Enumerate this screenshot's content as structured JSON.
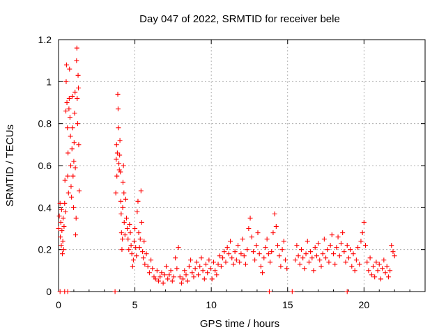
{
  "chart_data": {
    "type": "scatter",
    "title": "Day 047 of 2022, SRMTID for receiver bele",
    "xlabel": "GPS time / hours",
    "ylabel": "SRMTID / TECUs",
    "xlim": [
      0,
      24
    ],
    "ylim": [
      0,
      1.2
    ],
    "xticks": [
      0,
      5,
      10,
      15,
      20
    ],
    "yticks": [
      0,
      0.2,
      0.4,
      0.6,
      0.8,
      1,
      1.2
    ],
    "xtick_labels": [
      "0",
      "5",
      "10",
      "15",
      "20"
    ],
    "ytick_labels": [
      "0",
      "0.2",
      "0.4",
      "0.6",
      "0.8",
      "1",
      "1.2"
    ],
    "grid": true,
    "marker": "+",
    "color": "#ff0000",
    "series": [
      {
        "name": "SRMTID",
        "points": [
          [
            0.0,
            0.3
          ],
          [
            0.05,
            0.36
          ],
          [
            0.1,
            0.42
          ],
          [
            0.12,
            0.26
          ],
          [
            0.15,
            0.33
          ],
          [
            0.18,
            0.22
          ],
          [
            0.2,
            0.39
          ],
          [
            0.22,
            0.29
          ],
          [
            0.25,
            0.18
          ],
          [
            0.28,
            0.24
          ],
          [
            0.3,
            0.35
          ],
          [
            0.33,
            0.2
          ],
          [
            0.36,
            0.31
          ],
          [
            0.4,
            0.42
          ],
          [
            0.42,
            0.53
          ],
          [
            0.45,
            0.38
          ],
          [
            0.48,
            0.86
          ],
          [
            0.5,
            1.0
          ],
          [
            0.52,
            1.08
          ],
          [
            0.55,
            0.9
          ],
          [
            0.58,
            0.78
          ],
          [
            0.6,
            0.55
          ],
          [
            0.62,
            0.66
          ],
          [
            0.65,
            0.47
          ],
          [
            0.68,
            0.87
          ],
          [
            0.7,
            0.92
          ],
          [
            0.72,
            1.06
          ],
          [
            0.75,
            0.83
          ],
          [
            0.78,
            0.74
          ],
          [
            0.8,
            0.6
          ],
          [
            0.82,
            0.5
          ],
          [
            0.85,
            0.45
          ],
          [
            0.88,
            0.68
          ],
          [
            0.9,
            0.93
          ],
          [
            0.92,
            0.78
          ],
          [
            0.95,
            0.55
          ],
          [
            0.98,
            0.4
          ],
          [
            1.0,
            0.62
          ],
          [
            1.02,
            0.71
          ],
          [
            1.05,
            0.85
          ],
          [
            1.08,
            0.95
          ],
          [
            1.1,
            0.59
          ],
          [
            1.12,
            0.27
          ],
          [
            1.15,
            0.35
          ],
          [
            1.18,
            1.1
          ],
          [
            1.2,
            1.16
          ],
          [
            1.22,
            0.92
          ],
          [
            1.25,
            0.8
          ],
          [
            1.28,
            1.03
          ],
          [
            1.3,
            0.97
          ],
          [
            1.32,
            0.7
          ],
          [
            1.35,
            0.48
          ],
          [
            3.75,
            0.47
          ],
          [
            3.78,
            0.63
          ],
          [
            3.8,
            0.7
          ],
          [
            3.82,
            0.55
          ],
          [
            3.85,
            0.66
          ],
          [
            3.88,
            0.94
          ],
          [
            3.9,
            0.87
          ],
          [
            3.92,
            0.78
          ],
          [
            3.95,
            0.61
          ],
          [
            3.98,
            0.58
          ],
          [
            4.0,
            0.65
          ],
          [
            4.02,
            0.72
          ],
          [
            4.05,
            0.57
          ],
          [
            4.08,
            0.43
          ],
          [
            4.1,
            0.37
          ],
          [
            4.12,
            0.28
          ],
          [
            4.15,
            0.2
          ],
          [
            4.18,
            0.25
          ],
          [
            4.2,
            0.4
          ],
          [
            4.22,
            0.52
          ],
          [
            4.25,
            0.6
          ],
          [
            4.28,
            0.47
          ],
          [
            4.3,
            0.33
          ],
          [
            4.35,
            0.27
          ],
          [
            4.4,
            0.44
          ],
          [
            4.45,
            0.35
          ],
          [
            4.5,
            0.3
          ],
          [
            4.55,
            0.25
          ],
          [
            4.6,
            0.2
          ],
          [
            4.65,
            0.32
          ],
          [
            4.7,
            0.28
          ],
          [
            4.75,
            0.22
          ],
          [
            4.8,
            0.18
          ],
          [
            4.85,
            0.12
          ],
          [
            4.9,
            0.15
          ],
          [
            4.95,
            0.24
          ],
          [
            5.0,
            0.3
          ],
          [
            5.05,
            0.21
          ],
          [
            5.1,
            0.17
          ],
          [
            5.15,
            0.38
          ],
          [
            5.2,
            0.43
          ],
          [
            5.25,
            0.28
          ],
          [
            5.3,
            0.21
          ],
          [
            5.35,
            0.25
          ],
          [
            5.4,
            0.48
          ],
          [
            5.45,
            0.33
          ],
          [
            5.5,
            0.19
          ],
          [
            5.55,
            0.16
          ],
          [
            5.6,
            0.24
          ],
          [
            5.65,
            0.13
          ],
          [
            5.75,
            0.18
          ],
          [
            5.85,
            0.12
          ],
          [
            5.95,
            0.09
          ],
          [
            6.05,
            0.15
          ],
          [
            6.15,
            0.11
          ],
          [
            6.25,
            0.07
          ],
          [
            6.35,
            0.06
          ],
          [
            6.45,
            0.1
          ],
          [
            6.55,
            0.05
          ],
          [
            6.65,
            0.07
          ],
          [
            6.75,
            0.09
          ],
          [
            6.85,
            0.04
          ],
          [
            6.95,
            0.08
          ],
          [
            7.05,
            0.12
          ],
          [
            7.15,
            0.06
          ],
          [
            7.25,
            0.08
          ],
          [
            7.35,
            0.1
          ],
          [
            7.45,
            0.05
          ],
          [
            7.55,
            0.07
          ],
          [
            7.65,
            0.16
          ],
          [
            7.75,
            0.11
          ],
          [
            7.85,
            0.21
          ],
          [
            7.95,
            0.07
          ],
          [
            8.05,
            0.04
          ],
          [
            8.15,
            0.06
          ],
          [
            8.25,
            0.1
          ],
          [
            8.35,
            0.08
          ],
          [
            8.45,
            0.05
          ],
          [
            8.55,
            0.12
          ],
          [
            8.65,
            0.15
          ],
          [
            8.75,
            0.09
          ],
          [
            8.85,
            0.07
          ],
          [
            8.95,
            0.11
          ],
          [
            9.05,
            0.14
          ],
          [
            9.15,
            0.08
          ],
          [
            9.25,
            0.12
          ],
          [
            9.35,
            0.16
          ],
          [
            9.45,
            0.1
          ],
          [
            9.55,
            0.06
          ],
          [
            9.65,
            0.13
          ],
          [
            9.75,
            0.09
          ],
          [
            9.85,
            0.15
          ],
          [
            9.95,
            0.11
          ],
          [
            10.05,
            0.06
          ],
          [
            10.15,
            0.14
          ],
          [
            10.25,
            0.1
          ],
          [
            10.35,
            0.08
          ],
          [
            10.45,
            0.13
          ],
          [
            10.55,
            0.17
          ],
          [
            10.65,
            0.12
          ],
          [
            10.75,
            0.16
          ],
          [
            10.85,
            0.19
          ],
          [
            10.95,
            0.14
          ],
          [
            11.05,
            0.21
          ],
          [
            11.15,
            0.18
          ],
          [
            11.25,
            0.24
          ],
          [
            11.35,
            0.16
          ],
          [
            11.45,
            0.13
          ],
          [
            11.55,
            0.19
          ],
          [
            11.65,
            0.15
          ],
          [
            11.75,
            0.22
          ],
          [
            11.85,
            0.14
          ],
          [
            11.95,
            0.18
          ],
          [
            12.05,
            0.25
          ],
          [
            12.15,
            0.17
          ],
          [
            12.25,
            0.13
          ],
          [
            12.35,
            0.2
          ],
          [
            12.45,
            0.3
          ],
          [
            12.55,
            0.35
          ],
          [
            12.65,
            0.26
          ],
          [
            12.75,
            0.19
          ],
          [
            12.85,
            0.15
          ],
          [
            12.95,
            0.22
          ],
          [
            13.05,
            0.28
          ],
          [
            13.15,
            0.18
          ],
          [
            13.25,
            0.12
          ],
          [
            13.35,
            0.09
          ],
          [
            13.45,
            0.16
          ],
          [
            13.55,
            0.21
          ],
          [
            13.65,
            0.25
          ],
          [
            13.75,
            0.18
          ],
          [
            13.85,
            0.14
          ],
          [
            13.95,
            0.19
          ],
          [
            14.05,
            0.28
          ],
          [
            14.15,
            0.37
          ],
          [
            14.25,
            0.31
          ],
          [
            14.35,
            0.22
          ],
          [
            14.45,
            0.17
          ],
          [
            14.55,
            0.12
          ],
          [
            14.65,
            0.2
          ],
          [
            14.75,
            0.24
          ],
          [
            14.85,
            0.15
          ],
          [
            14.95,
            0.11
          ],
          [
            15.5,
            0.15
          ],
          [
            15.6,
            0.22
          ],
          [
            15.7,
            0.17
          ],
          [
            15.8,
            0.13
          ],
          [
            15.9,
            0.2
          ],
          [
            16.0,
            0.16
          ],
          [
            16.1,
            0.11
          ],
          [
            16.2,
            0.18
          ],
          [
            16.3,
            0.24
          ],
          [
            16.4,
            0.14
          ],
          [
            16.5,
            0.19
          ],
          [
            16.6,
            0.16
          ],
          [
            16.7,
            0.1
          ],
          [
            16.8,
            0.21
          ],
          [
            16.9,
            0.17
          ],
          [
            17.0,
            0.23
          ],
          [
            17.1,
            0.15
          ],
          [
            17.2,
            0.12
          ],
          [
            17.3,
            0.18
          ],
          [
            17.4,
            0.25
          ],
          [
            17.5,
            0.16
          ],
          [
            17.6,
            0.2
          ],
          [
            17.7,
            0.14
          ],
          [
            17.8,
            0.22
          ],
          [
            17.9,
            0.27
          ],
          [
            18.0,
            0.18
          ],
          [
            18.1,
            0.13
          ],
          [
            18.2,
            0.21
          ],
          [
            18.3,
            0.26
          ],
          [
            18.4,
            0.17
          ],
          [
            18.5,
            0.23
          ],
          [
            18.6,
            0.28
          ],
          [
            18.7,
            0.19
          ],
          [
            18.8,
            0.14
          ],
          [
            18.9,
            0.22
          ],
          [
            19.0,
            0.16
          ],
          [
            19.1,
            0.2
          ],
          [
            19.2,
            0.12
          ],
          [
            19.3,
            0.18
          ],
          [
            19.4,
            0.1
          ],
          [
            19.5,
            0.15
          ],
          [
            19.6,
            0.21
          ],
          [
            19.7,
            0.13
          ],
          [
            19.8,
            0.24
          ],
          [
            19.9,
            0.28
          ],
          [
            20.0,
            0.33
          ],
          [
            20.1,
            0.22
          ],
          [
            20.2,
            0.14
          ],
          [
            20.3,
            0.1
          ],
          [
            20.4,
            0.16
          ],
          [
            20.5,
            0.08
          ],
          [
            20.6,
            0.12
          ],
          [
            20.7,
            0.07
          ],
          [
            20.8,
            0.14
          ],
          [
            20.9,
            0.1
          ],
          [
            21.0,
            0.13
          ],
          [
            21.1,
            0.06
          ],
          [
            21.2,
            0.11
          ],
          [
            21.3,
            0.15
          ],
          [
            21.4,
            0.09
          ],
          [
            21.5,
            0.12
          ],
          [
            21.6,
            0.07
          ],
          [
            21.7,
            0.1
          ],
          [
            21.8,
            0.22
          ],
          [
            21.9,
            0.19
          ],
          [
            22.0,
            0.17
          ]
        ]
      }
    ],
    "zero_markers_x": [
      0.1,
      0.4,
      0.6,
      3.7,
      13.8,
      15.3,
      18.9
    ]
  }
}
